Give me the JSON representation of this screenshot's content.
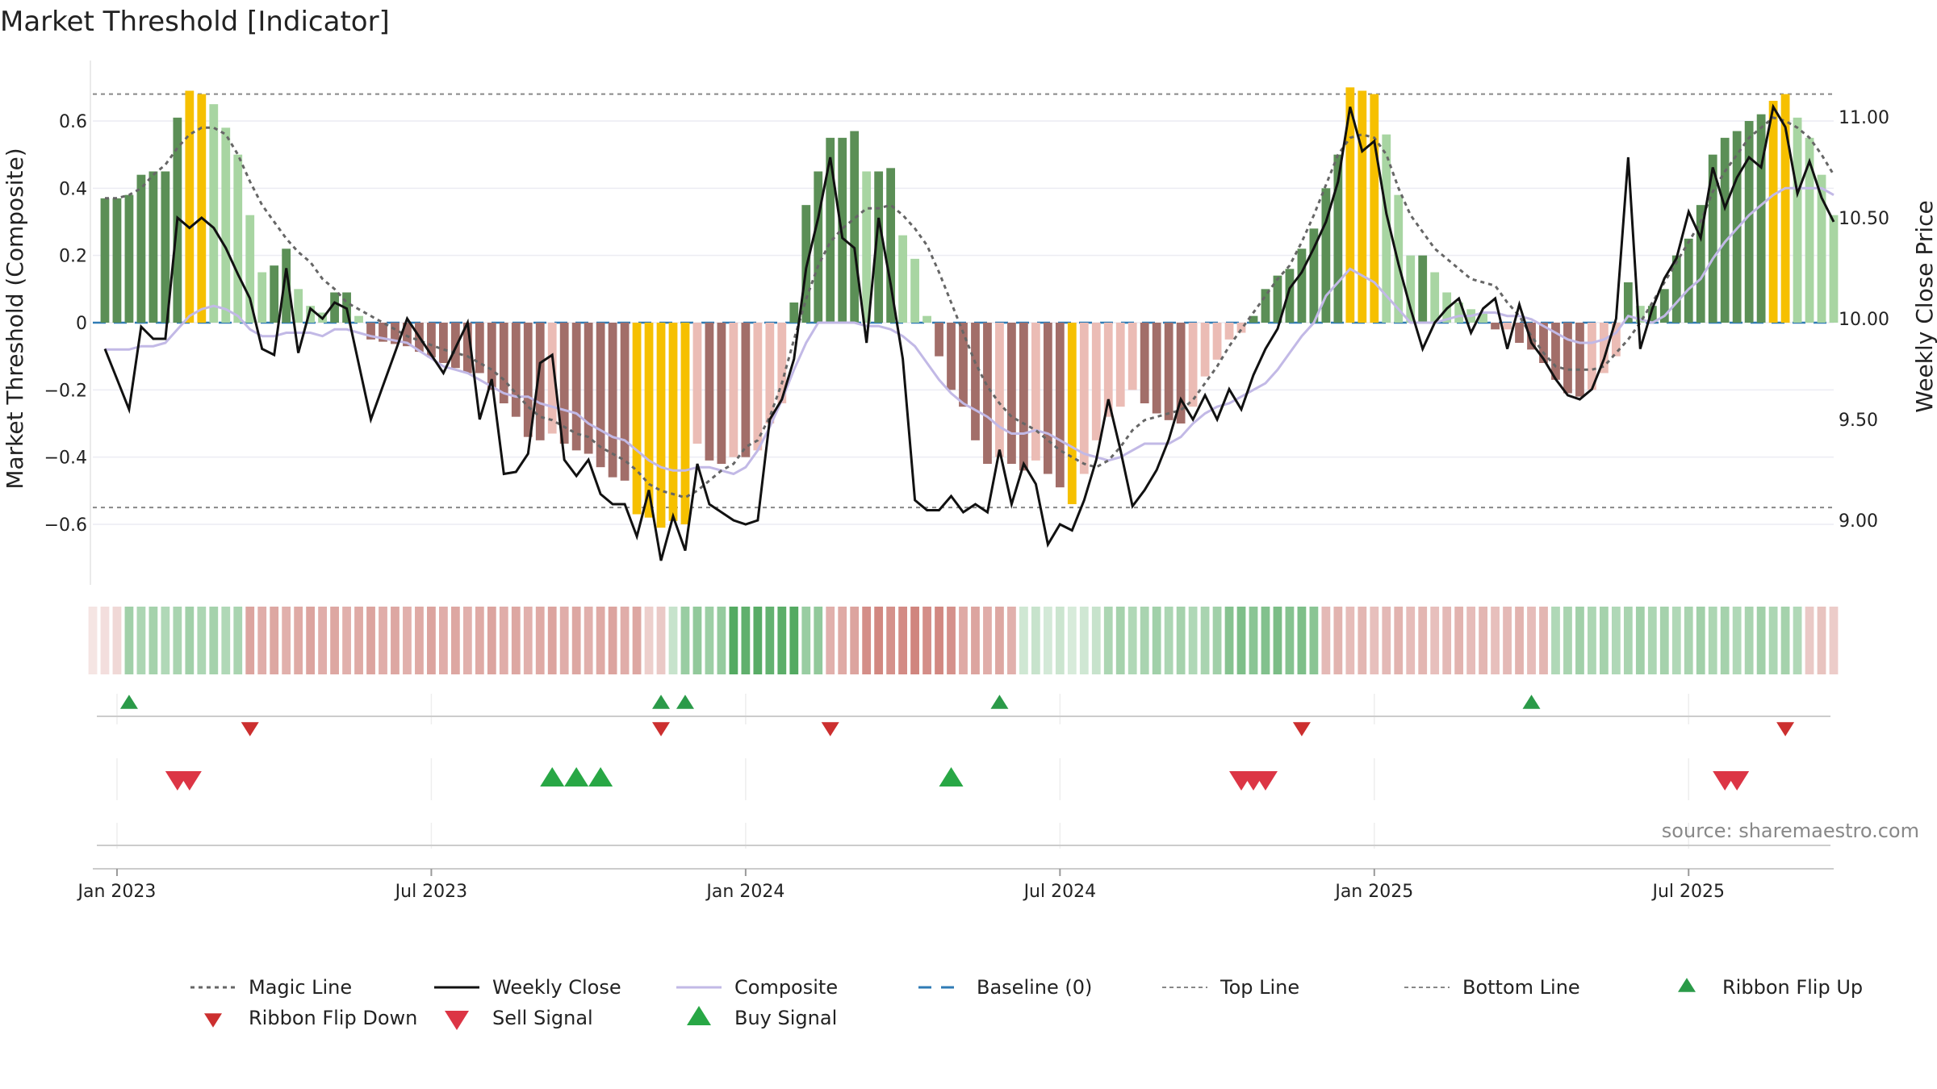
{
  "chart_data": {
    "type": "bar",
    "title": "Market Threshold [Indicator]",
    "ylabel": "Market Threshold (Composite)",
    "ylabel_right": "Weekly Close Price",
    "ylim": [
      -0.78,
      0.78
    ],
    "ylim_right": [
      8.68,
      11.28
    ],
    "yticks": [
      0.6,
      0.4,
      0.2,
      0,
      -0.2,
      -0.4,
      -0.6
    ],
    "ytick_labels": [
      "0.6",
      "0.4",
      "0.2",
      "0",
      "−0.2",
      "−0.4",
      "−0.6"
    ],
    "yticks_right": [
      11.0,
      10.5,
      10.0,
      9.5,
      9.0
    ],
    "ytick_labels_right": [
      "11.00",
      "10.50",
      "10.00",
      "9.50",
      "9.00"
    ],
    "x_range_weeks": [
      -1,
      143
    ],
    "xtick_weeks": [
      1,
      27,
      53,
      79,
      105,
      131
    ],
    "xtick_labels": [
      "Jan 2023",
      "Jul 2023",
      "Jan 2024",
      "Jul 2024",
      "Jan 2025",
      "Jul 2025"
    ],
    "top_line": 0.68,
    "bottom_line": -0.55,
    "source": "source: sharemaestro.com",
    "colors": {
      "pos_light": "#a8d5a2",
      "pos_dark": "#5b8f56",
      "neg_light": "#ebbcb5",
      "neg_dark": "#a26e69",
      "extreme": "#f6c000",
      "magic": "#666666",
      "close": "#111111",
      "composite": "#c2b9e6",
      "baseline": "#2f7bb5",
      "threshold": "#888888",
      "flip_up": "#2a9a48",
      "flip_down": "#cc2f2f",
      "sell": "#dc3545",
      "buy": "#28a745"
    },
    "keyweeks": [
      [
        0,
        0.37,
        9.85,
        0.37,
        -0.08
      ],
      [
        1,
        0.37,
        9.7,
        0.37,
        -0.08
      ],
      [
        2,
        0.38,
        9.55,
        0.38,
        -0.08
      ],
      [
        3,
        0.44,
        9.96,
        0.4,
        -0.07
      ],
      [
        4,
        0.45,
        9.9,
        0.44,
        -0.07
      ],
      [
        5,
        0.45,
        9.9,
        0.47,
        -0.06
      ],
      [
        6,
        0.61,
        10.5,
        0.52,
        -0.02
      ],
      [
        7,
        0.69,
        10.45,
        0.56,
        0.02
      ],
      [
        8,
        0.68,
        10.5,
        0.58,
        0.04
      ],
      [
        9,
        0.65,
        10.45,
        0.58,
        0.05
      ],
      [
        10,
        0.58,
        10.35,
        0.56,
        0.04
      ],
      [
        11,
        0.5,
        10.22,
        0.5,
        0.02
      ],
      [
        12,
        0.32,
        10.1,
        0.42,
        -0.02
      ],
      [
        13,
        0.15,
        9.85,
        0.35,
        -0.04
      ],
      [
        14,
        0.17,
        9.82,
        0.3,
        -0.04
      ],
      [
        15,
        0.22,
        10.25,
        0.25,
        -0.03
      ],
      [
        16,
        0.1,
        9.83,
        0.21,
        -0.03
      ],
      [
        17,
        0.05,
        10.05,
        0.18,
        -0.03
      ],
      [
        18,
        0.03,
        10.0,
        0.13,
        -0.04
      ],
      [
        19,
        0.09,
        10.08,
        0.1,
        -0.02
      ],
      [
        20,
        0.09,
        10.05,
        0.06,
        -0.02
      ],
      [
        22,
        -0.05,
        9.5,
        0.02,
        -0.04
      ],
      [
        25,
        -0.07,
        10.0,
        -0.04,
        -0.06
      ],
      [
        28,
        -0.12,
        9.73,
        -0.08,
        -0.13
      ],
      [
        30,
        -0.15,
        9.98,
        -0.1,
        -0.15
      ],
      [
        31,
        -0.15,
        9.5,
        -0.12,
        -0.17
      ],
      [
        32,
        -0.2,
        9.7,
        -0.14,
        -0.19
      ],
      [
        33,
        -0.24,
        9.23,
        -0.17,
        -0.21
      ],
      [
        34,
        -0.28,
        9.24,
        -0.21,
        -0.22
      ],
      [
        35,
        -0.34,
        9.33,
        -0.25,
        -0.22
      ],
      [
        36,
        -0.35,
        9.78,
        -0.28,
        -0.24
      ],
      [
        37,
        -0.33,
        9.82,
        -0.29,
        -0.25
      ],
      [
        38,
        -0.36,
        9.3,
        -0.31,
        -0.26
      ],
      [
        39,
        -0.38,
        9.22,
        -0.33,
        -0.27
      ],
      [
        40,
        -0.39,
        9.3,
        -0.34,
        -0.3
      ],
      [
        41,
        -0.43,
        9.13,
        -0.37,
        -0.32
      ],
      [
        42,
        -0.46,
        9.08,
        -0.39,
        -0.34
      ],
      [
        43,
        -0.47,
        9.08,
        -0.41,
        -0.35
      ],
      [
        44,
        -0.57,
        8.92,
        -0.44,
        -0.38
      ],
      [
        45,
        -0.58,
        9.15,
        -0.48,
        -0.41
      ],
      [
        46,
        -0.61,
        8.8,
        -0.5,
        -0.43
      ],
      [
        47,
        -0.59,
        9.02,
        -0.51,
        -0.44
      ],
      [
        48,
        -0.6,
        8.85,
        -0.52,
        -0.44
      ],
      [
        49,
        -0.36,
        9.28,
        -0.5,
        -0.43
      ],
      [
        50,
        -0.41,
        9.08,
        -0.47,
        -0.43
      ],
      [
        51,
        -0.42,
        9.04,
        -0.44,
        -0.44
      ],
      [
        52,
        -0.4,
        9.0,
        -0.42,
        -0.45
      ],
      [
        53,
        -0.4,
        8.98,
        -0.37,
        -0.43
      ],
      [
        54,
        -0.38,
        9.0,
        -0.35,
        -0.38
      ],
      [
        55,
        -0.3,
        9.5,
        -0.28,
        -0.31
      ],
      [
        56,
        -0.24,
        9.6,
        -0.18,
        -0.23
      ],
      [
        57,
        0.06,
        9.8,
        -0.05,
        -0.14
      ],
      [
        58,
        0.35,
        10.25,
        0.07,
        -0.06
      ],
      [
        59,
        0.45,
        10.5,
        0.17,
        0.0
      ],
      [
        60,
        0.55,
        10.8,
        0.24,
        0.0
      ],
      [
        61,
        0.55,
        10.4,
        0.28,
        0.0
      ],
      [
        62,
        0.57,
        10.35,
        0.31,
        0.0
      ],
      [
        63,
        0.45,
        9.88,
        0.34,
        -0.01
      ],
      [
        64,
        0.45,
        10.5,
        0.34,
        -0.01
      ],
      [
        65,
        0.46,
        10.17,
        0.35,
        -0.02
      ],
      [
        66,
        0.26,
        9.8,
        0.32,
        -0.04
      ],
      [
        67,
        0.19,
        9.1,
        0.28,
        -0.07
      ],
      [
        68,
        0.02,
        9.05,
        0.23,
        -0.12
      ],
      [
        69,
        -0.1,
        9.05,
        0.15,
        -0.17
      ],
      [
        70,
        -0.2,
        9.12,
        0.06,
        -0.21
      ],
      [
        71,
        -0.25,
        9.04,
        -0.03,
        -0.24
      ],
      [
        72,
        -0.35,
        9.08,
        -0.12,
        -0.26
      ],
      [
        73,
        -0.42,
        9.04,
        -0.19,
        -0.28
      ],
      [
        74,
        -0.4,
        9.35,
        -0.24,
        -0.31
      ],
      [
        75,
        -0.42,
        9.08,
        -0.28,
        -0.33
      ],
      [
        76,
        -0.44,
        9.28,
        -0.3,
        -0.33
      ],
      [
        77,
        -0.41,
        9.18,
        -0.32,
        -0.32
      ],
      [
        78,
        -0.45,
        8.88,
        -0.35,
        -0.33
      ],
      [
        79,
        -0.49,
        8.98,
        -0.38,
        -0.35
      ],
      [
        80,
        -0.54,
        8.95,
        -0.4,
        -0.37
      ],
      [
        81,
        -0.45,
        9.1,
        -0.42,
        -0.39
      ],
      [
        82,
        -0.35,
        9.3,
        -0.43,
        -0.4
      ],
      [
        83,
        -0.28,
        9.6,
        -0.41,
        -0.41
      ],
      [
        84,
        -0.25,
        9.35,
        -0.37,
        -0.4
      ],
      [
        85,
        -0.2,
        9.07,
        -0.32,
        -0.38
      ],
      [
        86,
        -0.24,
        9.15,
        -0.29,
        -0.36
      ],
      [
        87,
        -0.27,
        9.25,
        -0.28,
        -0.36
      ],
      [
        88,
        -0.29,
        9.4,
        -0.27,
        -0.36
      ],
      [
        89,
        -0.3,
        9.6,
        -0.26,
        -0.34
      ],
      [
        90,
        -0.25,
        9.5,
        -0.23,
        -0.3
      ],
      [
        91,
        -0.16,
        9.62,
        -0.18,
        -0.27
      ],
      [
        92,
        -0.11,
        9.5,
        -0.13,
        -0.25
      ],
      [
        93,
        -0.05,
        9.65,
        -0.07,
        -0.24
      ],
      [
        94,
        -0.03,
        9.55,
        -0.02,
        -0.22
      ],
      [
        95,
        0.02,
        9.72,
        0.03,
        -0.2
      ],
      [
        96,
        0.1,
        9.85,
        0.08,
        -0.18
      ],
      [
        97,
        0.14,
        9.95,
        0.13,
        -0.14
      ],
      [
        98,
        0.16,
        10.15,
        0.17,
        -0.09
      ],
      [
        99,
        0.22,
        10.23,
        0.24,
        -0.04
      ],
      [
        100,
        0.28,
        10.35,
        0.32,
        0.0
      ],
      [
        101,
        0.4,
        10.48,
        0.41,
        0.08
      ],
      [
        102,
        0.5,
        10.68,
        0.5,
        0.12
      ],
      [
        103,
        0.7,
        11.05,
        0.55,
        0.16
      ],
      [
        104,
        0.69,
        10.83,
        0.56,
        0.14
      ],
      [
        105,
        0.68,
        10.88,
        0.55,
        0.12
      ],
      [
        106,
        0.56,
        10.52,
        0.5,
        0.08
      ],
      [
        107,
        0.38,
        10.27,
        0.4,
        0.04
      ],
      [
        108,
        0.2,
        10.05,
        0.32,
        0.0
      ],
      [
        109,
        0.2,
        9.85,
        0.27,
        0.0
      ],
      [
        110,
        0.15,
        9.98,
        0.22,
        0.0
      ],
      [
        111,
        0.09,
        10.05,
        0.19,
        0.01
      ],
      [
        112,
        0.06,
        10.1,
        0.16,
        0.02
      ],
      [
        113,
        0.04,
        9.93,
        0.13,
        0.02
      ],
      [
        114,
        0.03,
        10.05,
        0.12,
        0.03
      ],
      [
        115,
        -0.02,
        10.1,
        0.11,
        0.03
      ],
      [
        116,
        -0.02,
        9.85,
        0.06,
        0.02
      ],
      [
        117,
        -0.06,
        10.07,
        0.02,
        0.02
      ],
      [
        118,
        -0.08,
        9.88,
        -0.04,
        0.01
      ],
      [
        119,
        -0.12,
        9.8,
        -0.09,
        -0.01
      ],
      [
        120,
        -0.17,
        9.7,
        -0.13,
        -0.03
      ],
      [
        121,
        -0.21,
        9.62,
        -0.14,
        -0.05
      ],
      [
        122,
        -0.22,
        9.6,
        -0.14,
        -0.06
      ],
      [
        123,
        -0.2,
        9.65,
        -0.14,
        -0.06
      ],
      [
        124,
        -0.15,
        9.8,
        -0.13,
        -0.05
      ],
      [
        125,
        -0.1,
        10.0,
        -0.09,
        -0.03
      ],
      [
        126,
        0.12,
        10.8,
        -0.05,
        0.02
      ],
      [
        127,
        0.05,
        9.85,
        0.0,
        0.01
      ],
      [
        128,
        0.05,
        10.05,
        0.06,
        0.0
      ],
      [
        129,
        0.1,
        10.2,
        0.12,
        0.02
      ],
      [
        130,
        0.2,
        10.3,
        0.18,
        0.06
      ],
      [
        131,
        0.25,
        10.53,
        0.24,
        0.1
      ],
      [
        132,
        0.35,
        10.4,
        0.3,
        0.13
      ],
      [
        133,
        0.5,
        10.75,
        0.39,
        0.19
      ],
      [
        134,
        0.55,
        10.55,
        0.45,
        0.24
      ],
      [
        135,
        0.57,
        10.7,
        0.5,
        0.28
      ],
      [
        136,
        0.6,
        10.8,
        0.55,
        0.32
      ],
      [
        137,
        0.62,
        10.75,
        0.58,
        0.35
      ],
      [
        138,
        0.66,
        11.05,
        0.61,
        0.38
      ],
      [
        139,
        0.68,
        10.95,
        0.6,
        0.4
      ],
      [
        140,
        0.61,
        10.62,
        0.58,
        0.4
      ],
      [
        141,
        0.55,
        10.78,
        0.55,
        0.4
      ],
      [
        142,
        0.44,
        10.6,
        0.5,
        0.4
      ],
      [
        143,
        0.32,
        10.48,
        0.44,
        0.38
      ]
    ],
    "ribbon_runs": [
      {
        "from": -1,
        "to": 2,
        "tone": "neg",
        "strength": 0.25
      },
      {
        "from": 2,
        "to": 12,
        "tone": "pos",
        "strength": 0.45
      },
      {
        "from": 12,
        "to": 45,
        "tone": "neg",
        "strength": 0.55
      },
      {
        "from": 45,
        "to": 47,
        "tone": "neg",
        "strength": 0.35
      },
      {
        "from": 47,
        "to": 48,
        "tone": "pos",
        "strength": 0.25
      },
      {
        "from": 48,
        "to": 52,
        "tone": "pos",
        "strength": 0.55
      },
      {
        "from": 52,
        "to": 58,
        "tone": "pos",
        "strength": 0.85
      },
      {
        "from": 58,
        "to": 60,
        "tone": "pos",
        "strength": 0.55
      },
      {
        "from": 60,
        "to": 63,
        "tone": "neg",
        "strength": 0.55
      },
      {
        "from": 63,
        "to": 71,
        "tone": "neg",
        "strength": 0.75
      },
      {
        "from": 71,
        "to": 76,
        "tone": "neg",
        "strength": 0.55
      },
      {
        "from": 76,
        "to": 83,
        "tone": "pos",
        "strength": 0.25
      },
      {
        "from": 83,
        "to": 93,
        "tone": "pos",
        "strength": 0.45
      },
      {
        "from": 93,
        "to": 101,
        "tone": "pos",
        "strength": 0.65
      },
      {
        "from": 101,
        "to": 120,
        "tone": "neg",
        "strength": 0.45
      },
      {
        "from": 120,
        "to": 141,
        "tone": "pos",
        "strength": 0.45
      },
      {
        "from": 141,
        "to": 143,
        "tone": "neg",
        "strength": 0.35
      }
    ],
    "ribbon_flip_up": [
      2,
      46,
      48,
      74,
      118
    ],
    "ribbon_flip_down": [
      12,
      46,
      60,
      99,
      139
    ],
    "sell_signals": [
      6,
      7,
      94,
      95,
      96,
      134,
      135
    ],
    "buy_signals": [
      37,
      39,
      41,
      70
    ],
    "legend": [
      {
        "label": "Magic Line",
        "kind": "magic"
      },
      {
        "label": "Weekly Close",
        "kind": "close"
      },
      {
        "label": "Composite",
        "kind": "composite"
      },
      {
        "label": "Baseline (0)",
        "kind": "baseline"
      },
      {
        "label": "Top Line",
        "kind": "threshold"
      },
      {
        "label": "Bottom Line",
        "kind": "threshold"
      },
      {
        "label": "Ribbon Flip Up",
        "kind": "flip_up"
      },
      {
        "label": "Ribbon Flip Down",
        "kind": "flip_down"
      },
      {
        "label": "Sell Signal",
        "kind": "sell"
      },
      {
        "label": "Buy Signal",
        "kind": "buy"
      }
    ]
  }
}
